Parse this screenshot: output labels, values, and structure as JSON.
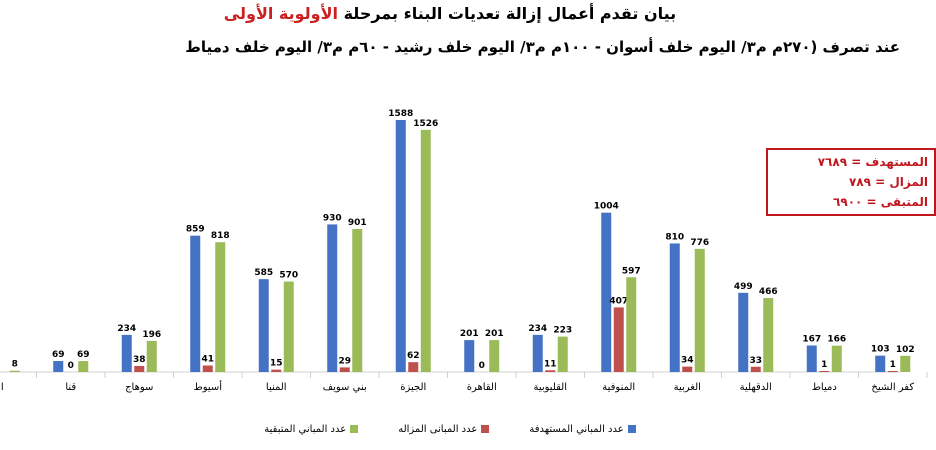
{
  "header": {
    "title_main": "بيان تقدم أعمال إزالة تعديات البناء بمرحلة",
    "title_highlight": "الأولوية الأولى",
    "subtitle": "عند تصرف (٢٧٠م م٣/ اليوم خلف أسوان - ١٠٠م م٣/ اليوم خلف رشيد - ٦٠م م٣/ اليوم خلف دمياط"
  },
  "summary": {
    "line1": "المستهدف = ٧٦٨٩",
    "line2": "المزال = ٧٨٩",
    "line3": "المتبقى = ٦٩٠٠"
  },
  "colors": {
    "target": "#4472c4",
    "removed": "#c0504d",
    "remaining": "#9bbb59",
    "highlight": "#cc1f1f"
  },
  "chart_data": {
    "type": "bar",
    "categories": [
      "ا",
      "قنا",
      "سوهاج",
      "أسيوط",
      "المنيا",
      "بني سويف",
      "الجيزة",
      "القاهرة",
      "القليوبية",
      "المنوفية",
      "الغربية",
      "الدقهلية",
      "دمياط",
      "كفر الشيخ"
    ],
    "series": [
      {
        "name": "عدد المباني المستهدفة",
        "values": [
          null,
          69,
          234,
          859,
          585,
          930,
          1588,
          201,
          234,
          1004,
          810,
          499,
          167,
          103
        ]
      },
      {
        "name": "عدد المبانى المزاله",
        "values": [
          null,
          0,
          38,
          41,
          15,
          29,
          62,
          0,
          11,
          407,
          34,
          33,
          1,
          1
        ]
      },
      {
        "name": "عدد المباني المتبقية",
        "values": [
          8,
          69,
          196,
          818,
          570,
          901,
          1526,
          201,
          223,
          597,
          776,
          466,
          166,
          102
        ]
      }
    ],
    "ylim": [
      0,
      1650
    ],
    "grid": false,
    "legend_position": "bottom"
  }
}
